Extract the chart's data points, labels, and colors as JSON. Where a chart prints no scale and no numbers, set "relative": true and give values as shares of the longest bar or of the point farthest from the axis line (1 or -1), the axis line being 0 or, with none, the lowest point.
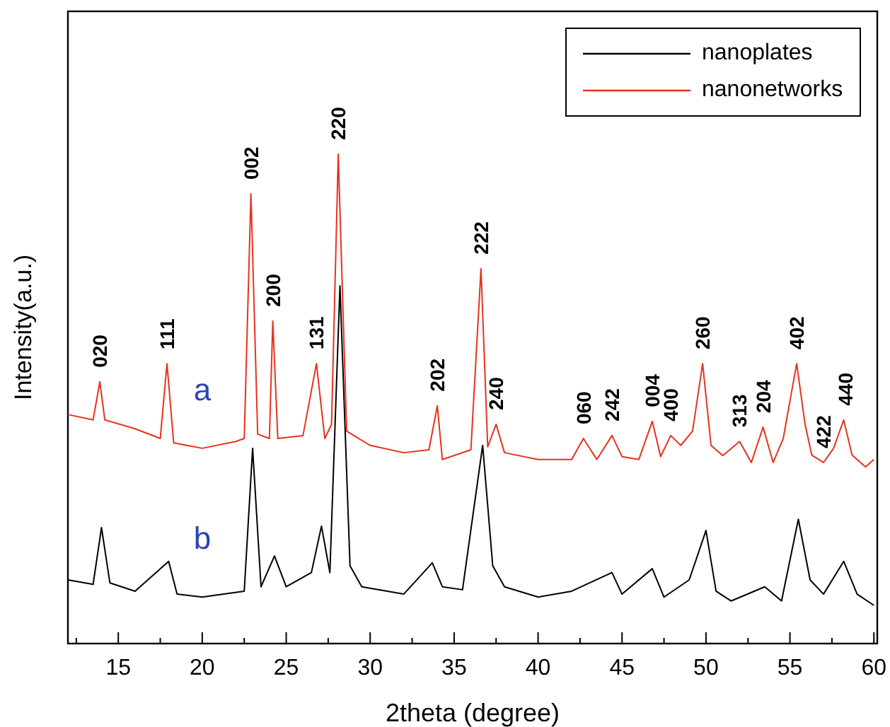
{
  "chart_data": {
    "type": "line",
    "relative": true,
    "xlabel": "2theta (degree)",
    "ylabel": "Intensity(a.u.)",
    "legend": "top right",
    "xlim": [
      12,
      60.2
    ],
    "xticks": [
      {
        "value": 12.5,
        "label": null
      },
      15,
      {
        "value": 17.5,
        "label": null
      },
      20,
      {
        "value": 22.5,
        "label": null
      },
      25,
      {
        "value": 27.5,
        "label": null
      },
      30,
      {
        "value": 32.5,
        "label": null
      },
      35,
      {
        "value": 37.5,
        "label": null
      },
      40,
      {
        "value": 42.5,
        "label": null
      },
      45,
      {
        "value": 47.5,
        "label": null
      },
      50,
      {
        "value": 52.5,
        "label": null
      },
      55,
      {
        "value": 57.5,
        "label": null
      },
      60
    ],
    "series": [
      {
        "name": "nanoplates",
        "color": "#000000",
        "x": [
          12,
          13.5,
          14.0,
          14.5,
          16,
          18.0,
          18.5,
          20,
          22.5,
          23.0,
          23.5,
          24.3,
          25,
          26.5,
          27.1,
          27.6,
          28.2,
          28.8,
          29.5,
          32,
          33.7,
          34.3,
          35.5,
          36.7,
          37.3,
          38,
          40,
          42,
          44.4,
          45,
          46.8,
          47.5,
          49,
          50.0,
          50.6,
          51.5,
          53.5,
          54.5,
          55.5,
          56.2,
          57,
          58.2,
          59,
          60
        ],
        "values": [
          0.13,
          0.121,
          0.237,
          0.124,
          0.107,
          0.168,
          0.101,
          0.095,
          0.107,
          0.399,
          0.116,
          0.179,
          0.116,
          0.145,
          0.24,
          0.145,
          0.731,
          0.159,
          0.116,
          0.101,
          0.165,
          0.116,
          0.11,
          0.405,
          0.159,
          0.116,
          0.095,
          0.107,
          0.145,
          0.101,
          0.153,
          0.095,
          0.13,
          0.231,
          0.107,
          0.087,
          0.116,
          0.087,
          0.254,
          0.13,
          0.101,
          0.168,
          0.101,
          0.078
        ]
      },
      {
        "name": "nanonetworks",
        "color": "#e8321e",
        "x": [
          12,
          13.5,
          13.9,
          14.2,
          16,
          17.5,
          17.9,
          18.3,
          20,
          22,
          22.5,
          22.9,
          23.3,
          24.0,
          24.2,
          24.5,
          26,
          26.8,
          27.3,
          27.7,
          28.1,
          28.6,
          30,
          32,
          33.5,
          34.0,
          34.3,
          36,
          36.6,
          37.0,
          37.5,
          38,
          40,
          42,
          42.7,
          43.5,
          44.4,
          45,
          46,
          46.8,
          47.3,
          47.9,
          48.5,
          49.2,
          49.8,
          50.3,
          51,
          52,
          52.7,
          53.4,
          54,
          54.6,
          55.4,
          55.9,
          56.3,
          57,
          57.6,
          58.2,
          58.7,
          59.5,
          60
        ],
        "values": [
          0.468,
          0.457,
          0.535,
          0.457,
          0.439,
          0.419,
          0.572,
          0.41,
          0.399,
          0.413,
          0.419,
          0.919,
          0.428,
          0.419,
          0.659,
          0.419,
          0.425,
          0.572,
          0.419,
          0.448,
          1.0,
          0.434,
          0.405,
          0.39,
          0.396,
          0.486,
          0.376,
          0.396,
          0.766,
          0.402,
          0.448,
          0.39,
          0.376,
          0.376,
          0.419,
          0.376,
          0.425,
          0.382,
          0.376,
          0.454,
          0.382,
          0.425,
          0.405,
          0.434,
          0.572,
          0.405,
          0.384,
          0.413,
          0.37,
          0.442,
          0.37,
          0.419,
          0.572,
          0.448,
          0.385,
          0.37,
          0.399,
          0.457,
          0.385,
          0.361,
          0.376
        ]
      }
    ],
    "annotations": [
      {
        "text": "020",
        "x": 13.9,
        "y": 0.535
      },
      {
        "text": "111",
        "x": 17.9,
        "y": 0.572
      },
      {
        "text": "002",
        "x": 22.9,
        "y": 0.919
      },
      {
        "text": "200",
        "x": 24.2,
        "y": 0.659
      },
      {
        "text": "131",
        "x": 26.8,
        "y": 0.572
      },
      {
        "text": "220",
        "x": 28.1,
        "y": 1.0
      },
      {
        "text": "202",
        "x": 34.0,
        "y": 0.486
      },
      {
        "text": "222",
        "x": 36.6,
        "y": 0.766
      },
      {
        "text": "240",
        "x": 37.5,
        "y": 0.448
      },
      {
        "text": "060",
        "x": 42.7,
        "y": 0.419
      },
      {
        "text": "242",
        "x": 44.4,
        "y": 0.425
      },
      {
        "text": "004",
        "x": 46.8,
        "y": 0.454
      },
      {
        "text": "400",
        "x": 47.9,
        "y": 0.425
      },
      {
        "text": "260",
        "x": 49.8,
        "y": 0.572
      },
      {
        "text": "313",
        "x": 52.0,
        "y": 0.413
      },
      {
        "text": "204",
        "x": 53.4,
        "y": 0.442
      },
      {
        "text": "402",
        "x": 55.4,
        "y": 0.572
      },
      {
        "text": "422",
        "x": 57.0,
        "y": 0.37
      },
      {
        "text": "440",
        "x": 58.3,
        "y": 0.457
      },
      {
        "text": "a",
        "x": 20,
        "y": 0.399
      },
      {
        "text": "b",
        "x": 20,
        "y": 0.095
      }
    ]
  }
}
